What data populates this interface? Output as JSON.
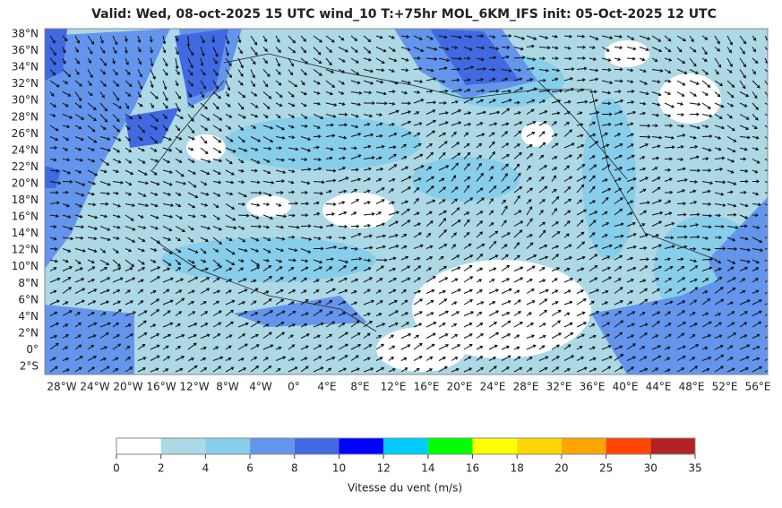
{
  "title": "Valid: Wed, 08-oct-2025   15 UTC   wind_10   T:+75hr   MOL_6KM_IFS   init: 05-Oct-2025    12 UTC",
  "lat_labels": [
    "38°N",
    "36°N",
    "34°N",
    "32°N",
    "30°N",
    "28°N",
    "26°N",
    "24°N",
    "22°N",
    "20°N",
    "18°N",
    "16°N",
    "14°N",
    "12°N",
    "10°N",
    "8°N",
    "6°N",
    "4°N",
    "2°N",
    "0°",
    "2°S"
  ],
  "lon_labels": [
    "28°W",
    "24°W",
    "20°W",
    "16°W",
    "12°W",
    "8°W",
    "4°W",
    "0°",
    "4°E",
    "8°E",
    "12°E",
    "16°E",
    "20°E",
    "24°E",
    "28°E",
    "32°E",
    "36°E",
    "40°E",
    "44°E",
    "48°E",
    "52°E",
    "56°E"
  ],
  "colorbar": {
    "bounds": [
      0,
      2,
      4,
      6,
      8,
      10,
      12,
      14,
      16,
      18,
      20,
      25,
      30,
      35
    ],
    "colors": [
      "#ffffff",
      "#add8e6",
      "#87ceeb",
      "#6495ed",
      "#4169e1",
      "#0000ff",
      "#00ccff",
      "#00ff00",
      "#ffff00",
      "#ffd700",
      "#ffa500",
      "#ff4500",
      "#b22222"
    ],
    "label": "Vitesse du vent (m/s)"
  }
}
